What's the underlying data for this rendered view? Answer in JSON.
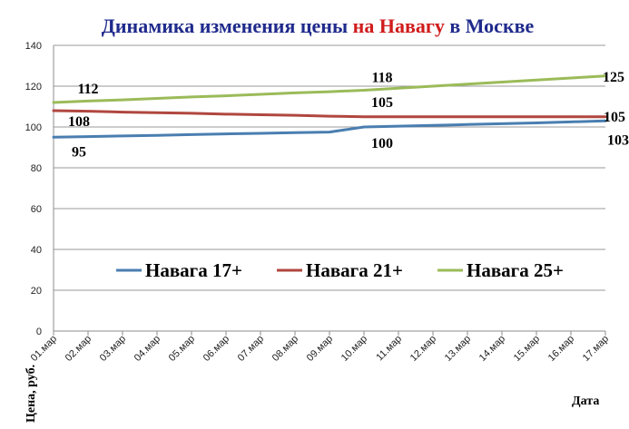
{
  "chart_data": {
    "type": "line",
    "title_parts": [
      {
        "text": "Динамика изменения цены ",
        "color": "#1f2a8c"
      },
      {
        "text": "на Навагу",
        "color": "#d01c1c"
      },
      {
        "text": " в Москве",
        "color": "#1f2a8c"
      }
    ],
    "xlabel": "Дата",
    "ylabel": "Цена, руб.",
    "categories": [
      "01.мар",
      "02.мар",
      "03.мар",
      "04.мар",
      "05.мар",
      "06.мар",
      "07.мар",
      "08.мар",
      "09.мар",
      "10.мар",
      "11.мар",
      "12.мар",
      "13.мар",
      "14.мар",
      "15.мар",
      "16.мар",
      "17.мар"
    ],
    "ylim": [
      0,
      140
    ],
    "yticks": [
      0,
      20,
      40,
      60,
      80,
      100,
      120,
      140
    ],
    "grid": true,
    "legend_position": "center",
    "series": [
      {
        "name": "Навага 17+",
        "color": "#4a7eb0",
        "values": [
          95,
          95.3,
          95.6,
          95.9,
          96.3,
          96.6,
          96.9,
          97.2,
          97.5,
          100,
          100.4,
          100.8,
          101.2,
          101.6,
          102.0,
          102.5,
          103
        ],
        "labels": [
          {
            "index": 0,
            "text": "95"
          },
          {
            "index": 9,
            "text": "100"
          },
          {
            "index": 16,
            "text": "103"
          }
        ]
      },
      {
        "name": "Навага 21+",
        "color": "#b0473f",
        "values": [
          108,
          107.7,
          107.3,
          107.0,
          106.7,
          106.3,
          106.0,
          105.7,
          105.3,
          105,
          105,
          105,
          105,
          105,
          105,
          105,
          105
        ],
        "labels": [
          {
            "index": 0,
            "text": "108"
          },
          {
            "index": 9,
            "text": "105"
          },
          {
            "index": 16,
            "text": "105"
          }
        ]
      },
      {
        "name": "Навага 25+",
        "color": "#9bbb59",
        "values": [
          112,
          112.7,
          113.3,
          114.0,
          114.7,
          115.3,
          116.0,
          116.7,
          117.3,
          118,
          119.0,
          120.0,
          121.0,
          122.0,
          123.0,
          124.0,
          125
        ],
        "labels": [
          {
            "index": 0,
            "text": "112"
          },
          {
            "index": 9,
            "text": "118"
          },
          {
            "index": 16,
            "text": "125"
          }
        ]
      }
    ]
  }
}
